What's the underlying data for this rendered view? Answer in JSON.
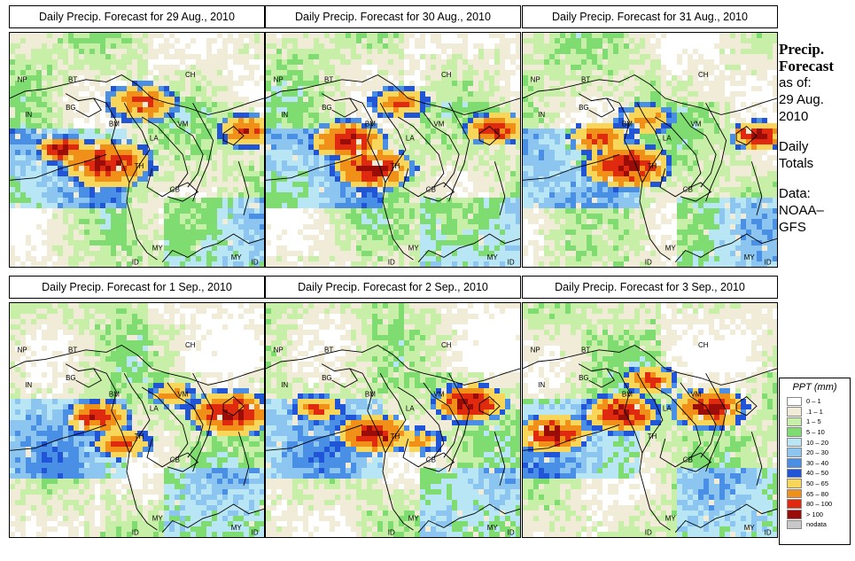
{
  "panels": [
    {
      "title": "Daily Precip. Forecast for  29 Aug., 2010",
      "seed": 11,
      "hot": [
        [
          0.21,
          0.5,
          0.22,
          1.0
        ],
        [
          0.38,
          0.56,
          0.38,
          0.9
        ],
        [
          0.52,
          0.3,
          0.3,
          0.7
        ],
        [
          0.93,
          0.42,
          0.25,
          0.7
        ]
      ]
    },
    {
      "title": "Daily Precip. Forecast for  30 Aug., 2010",
      "seed": 23,
      "hot": [
        [
          0.32,
          0.46,
          0.3,
          1.0
        ],
        [
          0.42,
          0.58,
          0.33,
          1.0
        ],
        [
          0.9,
          0.41,
          0.25,
          0.9
        ],
        [
          0.52,
          0.3,
          0.24,
          0.6
        ]
      ]
    },
    {
      "title": "Daily Precip. Forecast for  31 Aug., 2010",
      "seed": 37,
      "hot": [
        [
          0.3,
          0.45,
          0.25,
          0.8
        ],
        [
          0.41,
          0.57,
          0.35,
          1.0
        ],
        [
          0.92,
          0.44,
          0.22,
          1.0
        ],
        [
          0.48,
          0.37,
          0.24,
          0.5
        ]
      ]
    },
    {
      "title": "Daily Precip. Forecast for  1 Sep., 2010",
      "seed": 41,
      "hot": [
        [
          0.34,
          0.49,
          0.27,
          0.9
        ],
        [
          0.44,
          0.6,
          0.24,
          0.7
        ],
        [
          0.87,
          0.47,
          0.35,
          1.0
        ],
        [
          0.64,
          0.39,
          0.2,
          0.5
        ]
      ]
    },
    {
      "title": "Daily Precip. Forecast for  2 Sep., 2010",
      "seed": 53,
      "hot": [
        [
          0.42,
          0.56,
          0.3,
          1.0
        ],
        [
          0.8,
          0.43,
          0.3,
          1.0
        ],
        [
          0.2,
          0.45,
          0.22,
          0.6
        ],
        [
          0.6,
          0.59,
          0.2,
          0.5
        ]
      ]
    },
    {
      "title": "Daily Precip. Forecast for  3 Sep., 2010",
      "seed": 67,
      "hot": [
        [
          0.12,
          0.56,
          0.3,
          1.0
        ],
        [
          0.39,
          0.47,
          0.3,
          1.0
        ],
        [
          0.73,
          0.45,
          0.3,
          1.0
        ],
        [
          0.5,
          0.33,
          0.22,
          0.7
        ]
      ]
    }
  ],
  "map_labels": [
    "NP",
    "BT",
    "BG",
    "IN",
    "BM",
    "LA",
    "VM",
    "TH",
    "CB",
    "CH",
    "MY",
    "ID",
    "MY",
    "ID"
  ],
  "side": {
    "heading_1": "Precip.",
    "heading_2": "Forecast",
    "as_of": "as of:",
    "date_1": "29 Aug.",
    "date_2": "2010",
    "daily_1": "Daily",
    "daily_2": "Totals",
    "data_1": "Data:",
    "data_2": "NOAA–",
    "data_3": "GFS"
  },
  "legend": {
    "title": "PPT (mm)",
    "items": [
      {
        "label": "0 – 1",
        "color": "#ffffff"
      },
      {
        "label": ".1 – 1",
        "color": "#f1ecd8"
      },
      {
        "label": "1 – 5",
        "color": "#c8efa8"
      },
      {
        "label": "5 – 10",
        "color": "#7fdc70"
      },
      {
        "label": "10 – 20",
        "color": "#b8e6f4"
      },
      {
        "label": "20 – 30",
        "color": "#8cc6f0"
      },
      {
        "label": "30 – 40",
        "color": "#4a8fe6"
      },
      {
        "label": "40 – 50",
        "color": "#1f55d6"
      },
      {
        "label": "50 – 65",
        "color": "#f8d65a"
      },
      {
        "label": "65 – 80",
        "color": "#f09018"
      },
      {
        "label": "80 – 100",
        "color": "#e02a10"
      },
      {
        "label": "> 100",
        "color": "#9a0c08"
      },
      {
        "label": "nodata",
        "color": "#c8c8c8"
      }
    ]
  }
}
